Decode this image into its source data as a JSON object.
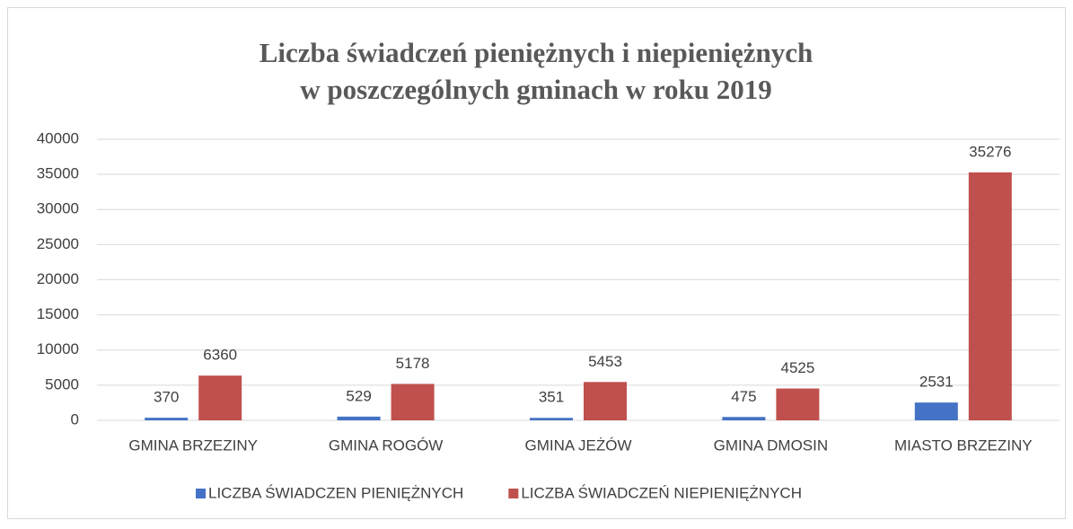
{
  "chart_data": {
    "type": "bar",
    "title": [
      "Liczba świadczeń pieniężnych i niepieniężnych",
      "w poszczególnych gminach w roku 2019"
    ],
    "categories": [
      "GMINA BRZEZINY",
      "GMINA ROGÓW",
      "GMINA JEŻÓW",
      "GMINA DMOSIN",
      "MIASTO BRZEZINY"
    ],
    "series": [
      {
        "name": "LICZBA ŚWIADCZEN PIENIĘŻNYCH",
        "color": "#4472c4",
        "values": [
          370,
          529,
          351,
          475,
          2531
        ]
      },
      {
        "name": "LICZBA ŚWIADCZEŃ NIEPIENIĘŻNYCH",
        "color": "#c0504d",
        "values": [
          6360,
          5178,
          5453,
          4525,
          35276
        ]
      }
    ],
    "ylim": [
      0,
      40000
    ],
    "yticks": [
      0,
      5000,
      10000,
      15000,
      20000,
      25000,
      30000,
      35000,
      40000
    ],
    "grid": true,
    "legend": "bottom"
  }
}
